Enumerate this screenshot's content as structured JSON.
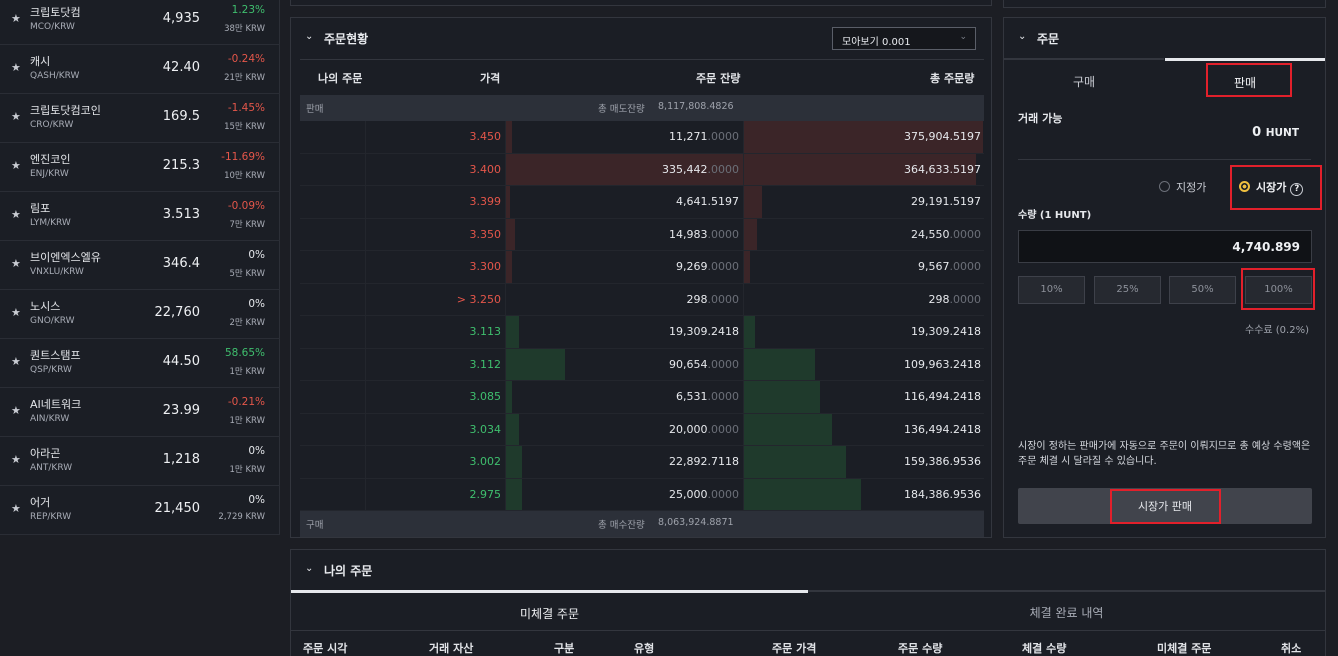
{
  "coin_list": [
    {
      "name": "크립토닷컴",
      "symbol": "MCO/KRW",
      "price": "4,935",
      "change": "1.23%",
      "dir": "up",
      "volume": "38만 KRW"
    },
    {
      "name": "캐시",
      "symbol": "QASH/KRW",
      "price": "42.40",
      "change": "-0.24%",
      "dir": "down",
      "volume": "21만 KRW"
    },
    {
      "name": "크립토닷컴코인",
      "symbol": "CRO/KRW",
      "price": "169.5",
      "change": "-1.45%",
      "dir": "down",
      "volume": "15만 KRW"
    },
    {
      "name": "엔진코인",
      "symbol": "ENJ/KRW",
      "price": "215.3",
      "change": "-11.69%",
      "dir": "down",
      "volume": "10만 KRW"
    },
    {
      "name": "림포",
      "symbol": "LYM/KRW",
      "price": "3.513",
      "change": "-0.09%",
      "dir": "down",
      "volume": "7만 KRW"
    },
    {
      "name": "브이엔엑스엘유",
      "symbol": "VNXLU/KRW",
      "price": "346.4",
      "change": "0%",
      "dir": "flat",
      "volume": "5만 KRW"
    },
    {
      "name": "노시스",
      "symbol": "GNO/KRW",
      "price": "22,760",
      "change": "0%",
      "dir": "flat",
      "volume": "2만 KRW"
    },
    {
      "name": "퀀트스탬프",
      "symbol": "QSP/KRW",
      "price": "44.50",
      "change": "58.65%",
      "dir": "up",
      "volume": "1만 KRW"
    },
    {
      "name": "AI네트워크",
      "symbol": "AIN/KRW",
      "price": "23.99",
      "change": "-0.21%",
      "dir": "down",
      "volume": "1만 KRW"
    },
    {
      "name": "아라곤",
      "symbol": "ANT/KRW",
      "price": "1,218",
      "change": "0%",
      "dir": "flat",
      "volume": "1만 KRW"
    },
    {
      "name": "어거",
      "symbol": "REP/KRW",
      "price": "21,450",
      "change": "0%",
      "dir": "flat",
      "volume": "2,729 KRW"
    }
  ],
  "orderbook": {
    "title": "주문현황",
    "aggregation": "모아보기 0.001",
    "columns": [
      "나의 주문",
      "가격",
      "주문 잔량",
      "총 주문량"
    ],
    "ask_band": {
      "label": "판매",
      "total_label": "총 매도잔량",
      "total_value": "8,117,808.4826"
    },
    "bid_band": {
      "label": "구매",
      "total_label": "총 매수잔량",
      "total_value": "8,063,924.8871"
    },
    "asks": [
      {
        "price": "3.450",
        "qty": "11,271",
        "qty_dec": ".0000",
        "total": "375,904.5197",
        "total_dec": "",
        "qty_ratio": 0.03,
        "total_ratio": 1.0
      },
      {
        "price": "3.400",
        "qty": "335,442",
        "qty_dec": ".0000",
        "total": "364,633.5197",
        "total_dec": "",
        "qty_ratio": 1.0,
        "total_ratio": 0.97
      },
      {
        "price": "3.399",
        "qty": "4,641.5197",
        "qty_dec": "",
        "total": "29,191.5197",
        "total_dec": "",
        "qty_ratio": 0.02,
        "total_ratio": 0.08
      },
      {
        "price": "3.350",
        "qty": "14,983",
        "qty_dec": ".0000",
        "total": "24,550",
        "total_dec": ".0000",
        "qty_ratio": 0.04,
        "total_ratio": 0.06
      },
      {
        "price": "3.300",
        "qty": "9,269",
        "qty_dec": ".0000",
        "total": "9,567",
        "total_dec": ".0000",
        "qty_ratio": 0.03,
        "total_ratio": 0.03
      },
      {
        "price": "> 3.250",
        "qty": "298",
        "qty_dec": ".0000",
        "total": "298",
        "total_dec": ".0000",
        "qty_ratio": 0.0,
        "total_ratio": 0.0
      }
    ],
    "bids": [
      {
        "price": "3.113",
        "qty": "19,309.2418",
        "qty_dec": "",
        "total": "19,309.2418",
        "total_dec": "",
        "qty_ratio": 0.06,
        "total_ratio": 0.05
      },
      {
        "price": "3.112",
        "qty": "90,654",
        "qty_dec": ".0000",
        "total": "109,963.2418",
        "total_dec": "",
        "qty_ratio": 0.25,
        "total_ratio": 0.3
      },
      {
        "price": "3.085",
        "qty": "6,531",
        "qty_dec": ".0000",
        "total": "116,494.2418",
        "total_dec": "",
        "qty_ratio": 0.03,
        "total_ratio": 0.32
      },
      {
        "price": "3.034",
        "qty": "20,000",
        "qty_dec": ".0000",
        "total": "136,494.2418",
        "total_dec": "",
        "qty_ratio": 0.06,
        "total_ratio": 0.37
      },
      {
        "price": "3.002",
        "qty": "22,892.7118",
        "qty_dec": "",
        "total": "159,386.9536",
        "total_dec": "",
        "qty_ratio": 0.07,
        "total_ratio": 0.43
      },
      {
        "price": "2.975",
        "qty": "25,000",
        "qty_dec": ".0000",
        "total": "184,386.9536",
        "total_dec": "",
        "qty_ratio": 0.07,
        "total_ratio": 0.49
      }
    ]
  },
  "order_panel": {
    "title": "주문",
    "tab_buy": "구매",
    "tab_sell": "판매",
    "available_label": "거래 가능",
    "available_value": "0",
    "available_unit": "HUNT",
    "limit_label": "지정가",
    "market_label": "시장가",
    "help_glyph": "?",
    "qty_label": "수량 (1 HUNT)",
    "qty_value": "4,740.899",
    "pct_buttons": [
      "10%",
      "25%",
      "50%",
      "100%"
    ],
    "fee_text": "수수료 (0.2%)",
    "notice": "시장이 정하는 판매가에 자동으로 주문이 이뤄지므로 총 예상 수령액은 주문 체결 시 달라질 수 있습니다.",
    "submit_label": "시장가 판매"
  },
  "my_orders": {
    "title": "나의 주문",
    "tab_open": "미체결 주문",
    "tab_done": "체결 완료 내역",
    "columns": [
      "주문 시각",
      "거래 자산",
      "구분",
      "유형",
      "주문 가격",
      "주문 수량",
      "체결 수량",
      "미체결 주문",
      "취소"
    ]
  },
  "colors": {
    "up": "#3fbf6e",
    "down": "#e4564a",
    "highlight": "#e2202b"
  }
}
